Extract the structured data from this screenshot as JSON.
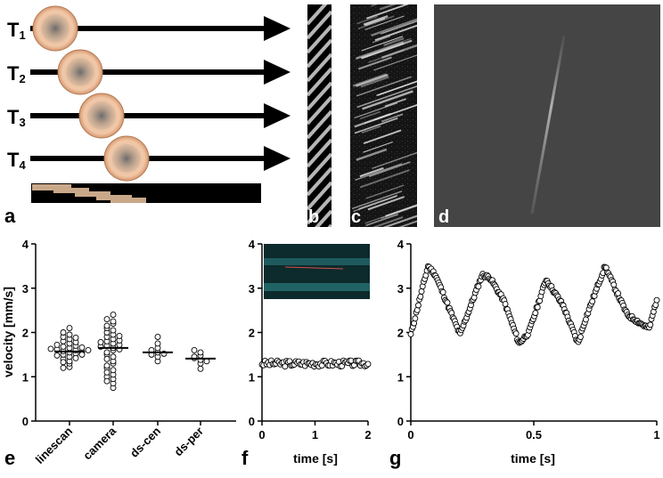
{
  "panel_a": {
    "label": "a",
    "rows": [
      {
        "name": "T",
        "sub": "1"
      },
      {
        "name": "T",
        "sub": "2"
      },
      {
        "name": "T",
        "sub": "3"
      },
      {
        "name": "T",
        "sub": "4"
      }
    ]
  },
  "panel_b": {
    "label": "b"
  },
  "panel_c": {
    "label": "c"
  },
  "panel_d": {
    "label": "d"
  },
  "chart_data": [
    {
      "id": "e",
      "type": "scatter",
      "label": "e",
      "ylabel": "velocity [mm/s]",
      "ylim": [
        0,
        4
      ],
      "yticks": [
        "0",
        "1",
        "2",
        "3",
        "4"
      ],
      "categories": [
        "linescan",
        "camera",
        "ds-cen",
        "ds-per"
      ],
      "means": [
        1.57,
        1.65,
        1.55,
        1.41
      ],
      "points": [
        [
          1.22,
          1.3,
          1.35,
          1.4,
          1.45,
          1.5,
          1.52,
          1.55,
          1.58,
          1.6,
          1.62,
          1.65,
          1.68,
          1.7,
          1.75,
          1.8,
          1.85,
          1.9,
          1.95,
          2.0,
          2.1,
          1.2,
          1.42,
          1.48,
          1.56,
          1.63,
          1.72,
          1.78,
          1.88,
          1.33,
          1.5,
          1.6,
          1.66
        ],
        [
          0.75,
          0.85,
          0.95,
          1.05,
          1.15,
          1.2,
          1.3,
          1.35,
          1.45,
          1.5,
          1.6,
          1.65,
          1.7,
          1.75,
          1.8,
          1.85,
          1.9,
          1.95,
          2.0,
          2.05,
          2.1,
          2.2,
          2.25,
          2.3,
          2.4,
          1.0,
          1.1,
          1.25,
          1.4,
          1.55,
          1.62,
          1.72,
          1.82,
          1.92,
          2.15,
          0.9,
          1.68,
          1.78
        ],
        [
          1.35,
          1.45,
          1.5,
          1.55,
          1.6,
          1.65,
          1.75,
          1.9,
          1.52
        ],
        [
          1.18,
          1.3,
          1.38,
          1.42,
          1.48,
          1.55,
          1.6,
          1.35,
          1.45
        ]
      ]
    },
    {
      "id": "f",
      "type": "scatter",
      "label": "f",
      "xlabel": "time [s]",
      "xlim": [
        0,
        2
      ],
      "ylim": [
        0,
        4
      ],
      "xticks": [
        "0",
        "1",
        "2"
      ],
      "yticks": [
        "0",
        "1",
        "2",
        "3",
        "4"
      ],
      "mean_level": 1.3,
      "noise": 0.07,
      "count": 70
    },
    {
      "id": "g",
      "type": "scatter",
      "label": "g",
      "xlabel": "time [s]",
      "xlim": [
        0,
        1
      ],
      "ylim": [
        0,
        4
      ],
      "xticks": [
        "0",
        "0.5",
        "1"
      ],
      "yticks": [
        "0",
        "1",
        "2",
        "3",
        "4"
      ],
      "keypoints": [
        [
          0,
          1.95
        ],
        [
          0.07,
          3.5
        ],
        [
          0.1,
          3.3
        ],
        [
          0.2,
          1.95
        ],
        [
          0.29,
          3.3
        ],
        [
          0.32,
          3.25
        ],
        [
          0.38,
          2.7
        ],
        [
          0.44,
          1.75
        ],
        [
          0.48,
          2.0
        ],
        [
          0.55,
          3.2
        ],
        [
          0.62,
          2.6
        ],
        [
          0.68,
          1.75
        ],
        [
          0.71,
          2.3
        ],
        [
          0.79,
          3.5
        ],
        [
          0.83,
          3.0
        ],
        [
          0.88,
          2.4
        ],
        [
          0.95,
          2.15
        ],
        [
          0.97,
          2.1
        ],
        [
          1.0,
          2.75
        ]
      ],
      "count": 230
    }
  ]
}
